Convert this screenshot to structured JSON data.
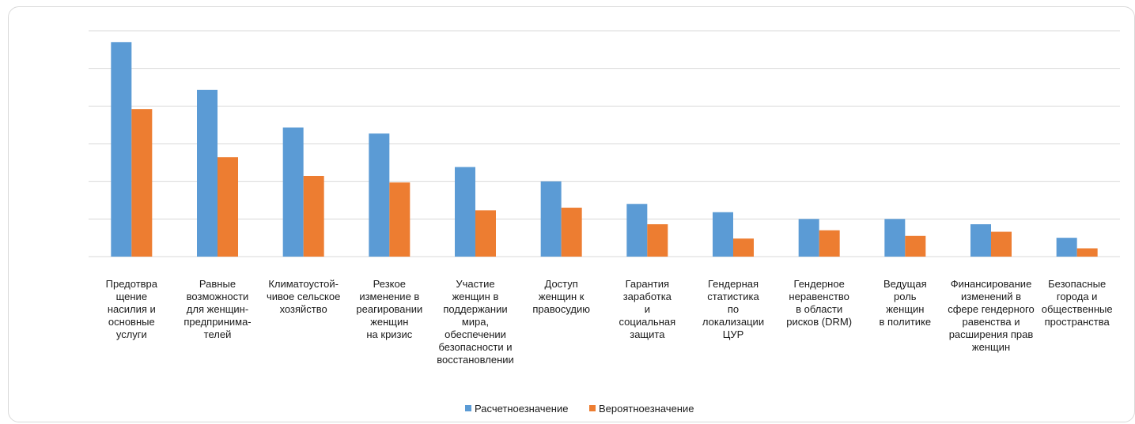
{
  "colors": {
    "series1": "#5b9bd5",
    "series2": "#ed7d31",
    "grid": "#d9d9d9"
  },
  "chart_data": {
    "type": "bar",
    "title": "",
    "xlabel": "",
    "ylabel": "",
    "ylim": [
      0,
      6
    ],
    "grid": true,
    "legend_position": "bottom",
    "categories": [
      [
        "Предотвра",
        "щение",
        "насилия и",
        "основные",
        "услуги"
      ],
      [
        "Равные",
        "возможности",
        "для женщин-",
        "предпринима-",
        "телей"
      ],
      [
        "Климатоустой-",
        "чивое сельское",
        "хозяйство"
      ],
      [
        "Резкое",
        "изменение в",
        "реагировании",
        "женщин",
        "на кризис"
      ],
      [
        "Участие",
        "женщин в",
        "поддержании",
        "мира,",
        "обеспечении",
        "безопасности и",
        "восстановлении"
      ],
      [
        "Доступ",
        "женщин к",
        "правосудию"
      ],
      [
        "Гарантия",
        "заработка",
        "и",
        "социальная",
        "защита"
      ],
      [
        "Гендерная",
        "статистика",
        "по",
        "локализации",
        "ЦУР"
      ],
      [
        "Гендерное",
        "неравенство",
        "в области",
        "рисков (DRM)"
      ],
      [
        "Ведущая",
        "роль",
        "женщин",
        "в политике"
      ],
      [
        "Финансирование",
        "изменений в",
        "сфере гендерного",
        "равенства и",
        "расширения прав",
        "женщин"
      ],
      [
        "Безопасные",
        "города и",
        "общественные",
        "пространства"
      ]
    ],
    "series": [
      {
        "name": "Расчетноезначение",
        "values": [
          5.7,
          4.43,
          3.43,
          3.27,
          2.38,
          2.0,
          1.4,
          1.18,
          1.0,
          1.0,
          0.86,
          0.5
        ]
      },
      {
        "name": "Вероятноезначение",
        "values": [
          3.92,
          2.64,
          2.14,
          1.97,
          1.23,
          1.3,
          0.86,
          0.48,
          0.7,
          0.55,
          0.66,
          0.22
        ]
      }
    ]
  }
}
